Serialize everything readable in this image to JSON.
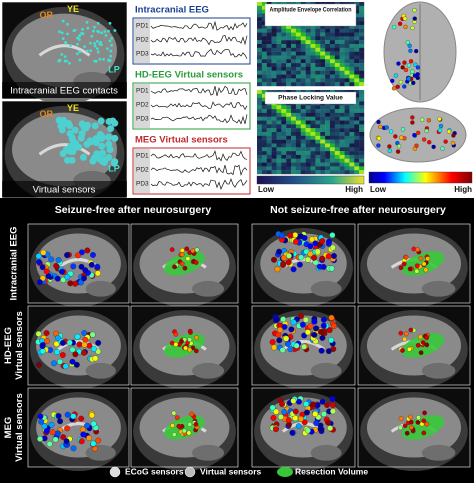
{
  "top": {
    "contacts_panel": {
      "tags": [
        "OR",
        "YE",
        "LP"
      ],
      "caption": "Intracranial EEG contacts"
    },
    "virtual_panel": {
      "tags": [
        "OR",
        "YE",
        "LP"
      ],
      "caption": "Virtual sensors"
    },
    "signals": [
      {
        "title": "Intracranial EEG",
        "channels": [
          "PD1",
          "PD2",
          "PD3"
        ]
      },
      {
        "title": "HD-EEG Virtual sensors",
        "channels": [
          "PD1",
          "PD2",
          "PD3"
        ]
      },
      {
        "title": "MEG Virtual sensors",
        "channels": [
          "PD1",
          "PD2",
          "PD3"
        ]
      }
    ],
    "matrices": [
      {
        "title": "Amplitude Envelope Correlation"
      },
      {
        "title": "Phase Locking Value"
      }
    ],
    "matrix_scale": {
      "low": "Low",
      "high": "High"
    },
    "brain_scale": {
      "low": "Low",
      "high": "High"
    }
  },
  "bottom": {
    "columns": [
      "Seizure-free after neurosurgery",
      "Not seizure-free after neurosurgery"
    ],
    "rows": [
      [
        "Intracranial EEG"
      ],
      [
        "HD-EEG",
        "Virtual sensors"
      ],
      [
        "MEG",
        "Virtual sensors"
      ]
    ],
    "legend": [
      "ECoG sensors",
      "Virtual sensors",
      "Resection Volume"
    ]
  }
}
